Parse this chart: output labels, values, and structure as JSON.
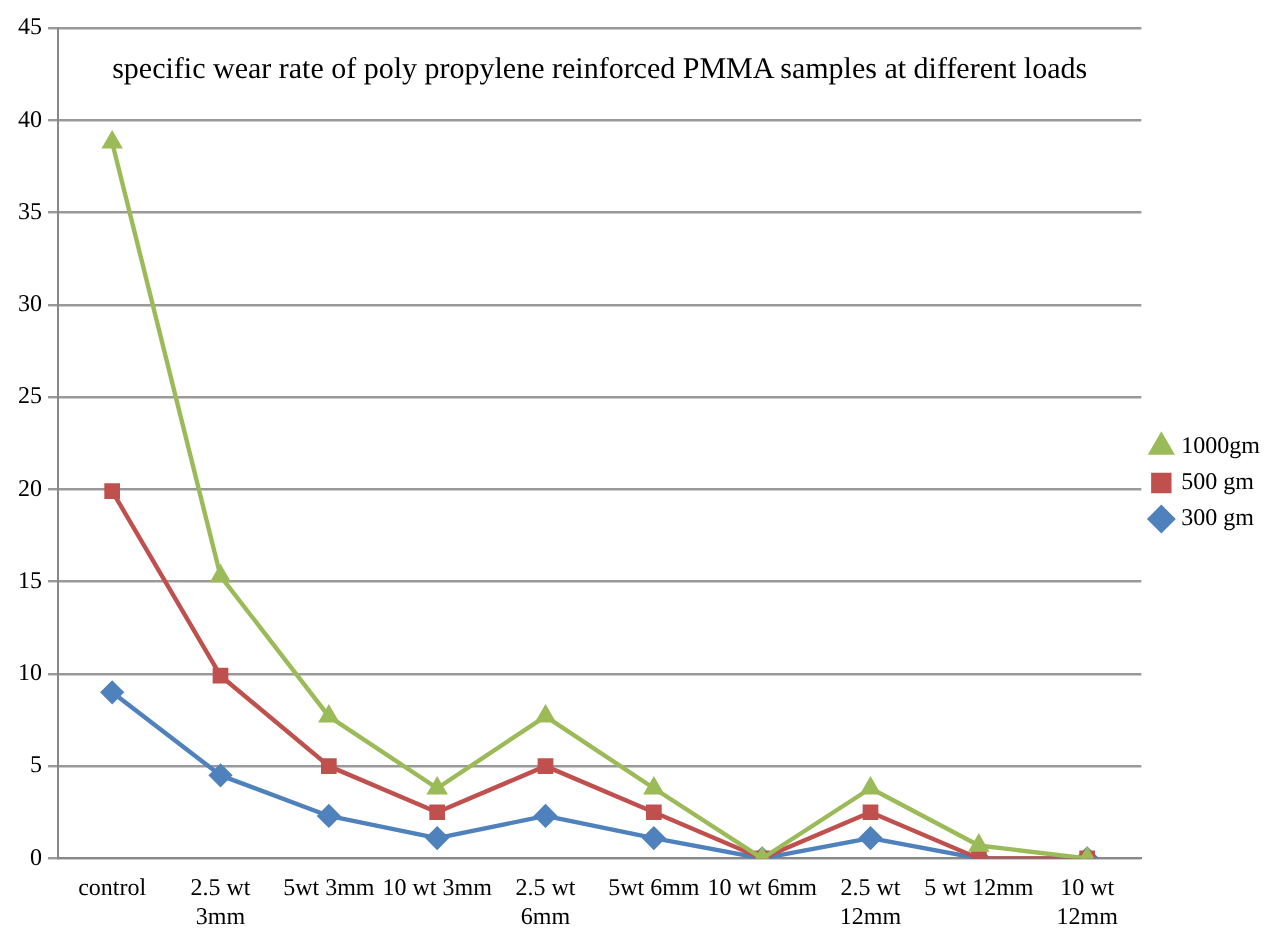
{
  "chart_data": {
    "type": "line",
    "title": "specific wear rate of poly propylene reinforced PMMA samples at different loads",
    "categories": [
      "control",
      "2.5 wt\n3mm",
      "5wt 3mm",
      "10 wt 3mm",
      "2.5 wt\n6mm",
      "5wt 6mm",
      "10 wt 6mm",
      "2.5 wt\n12mm",
      "5 wt 12mm",
      "10 wt\n12mm"
    ],
    "series": [
      {
        "name": "1000gm",
        "color": "#9bbb59",
        "marker": "triangle",
        "values": [
          38.8,
          15.3,
          7.7,
          3.8,
          7.7,
          3.8,
          0,
          3.8,
          0.7,
          0
        ]
      },
      {
        "name": "500 gm",
        "color": "#c0504d",
        "marker": "square",
        "values": [
          19.9,
          9.9,
          5.0,
          2.5,
          5.0,
          2.5,
          0,
          2.5,
          0,
          0
        ]
      },
      {
        "name": "300 gm",
        "color": "#4f81bd",
        "marker": "diamond",
        "values": [
          9.0,
          4.5,
          2.3,
          1.1,
          2.3,
          1.1,
          0,
          1.1,
          0,
          0
        ]
      }
    ],
    "ylim": [
      0,
      45
    ],
    "yticks": [
      0,
      5,
      10,
      15,
      20,
      25,
      30,
      35,
      40,
      45
    ],
    "grid": "y",
    "legend": "right",
    "line_style": "solid"
  }
}
